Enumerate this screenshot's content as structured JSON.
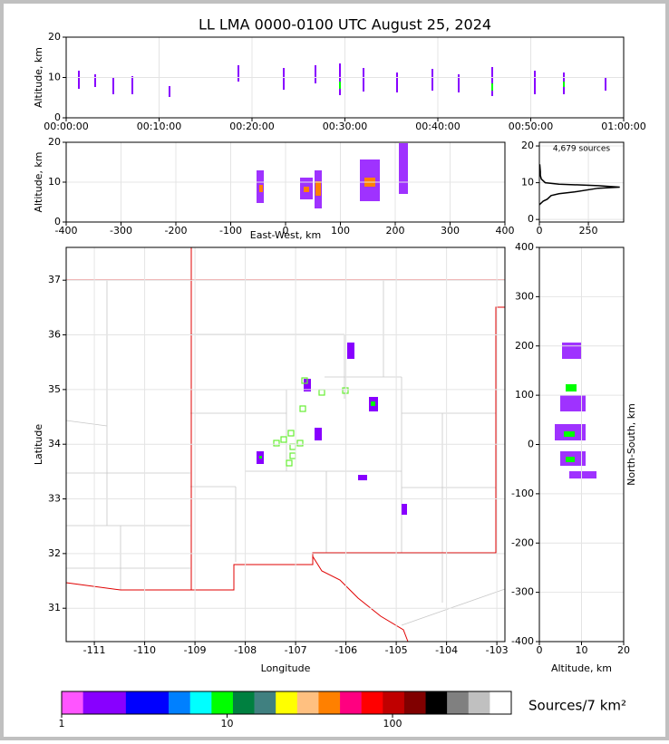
{
  "chart_data": [
    {
      "type": "scatter",
      "title": "LL LMA 0000-0100 UTC August 25, 2024",
      "ylabel": "Altitude, km",
      "xlim": [
        0,
        60
      ],
      "ylim": [
        0,
        20
      ],
      "grid": true,
      "xticks": [
        {
          "value": 0,
          "label": "00:00:00"
        },
        {
          "value": 10,
          "label": "00:10:00"
        },
        {
          "value": 20,
          "label": "00:20:00"
        },
        {
          "value": 30,
          "label": "00:30:00"
        },
        {
          "value": 40,
          "label": "00:40:00"
        },
        {
          "value": 50,
          "label": "00:50:00"
        },
        {
          "value": 60,
          "label": "01:00:00"
        }
      ],
      "yticks": [
        0,
        10,
        20
      ]
    },
    {
      "type": "scatter",
      "xlabel": "East-West, km",
      "ylabel": "Altitude, km",
      "xlim": [
        -400,
        400
      ],
      "ylim": [
        0,
        20
      ],
      "grid": true,
      "xticks": [
        -400,
        -300,
        -200,
        -100,
        0,
        100,
        200,
        300,
        400
      ],
      "yticks": [
        0,
        10,
        20
      ]
    },
    {
      "type": "line",
      "annotation": "4,679 sources",
      "xlim": [
        0,
        430
      ],
      "ylim": [
        -0.7,
        21
      ],
      "grid": true,
      "xticks": [
        0,
        250
      ],
      "yticks": [
        0,
        10,
        20
      ],
      "color": "#000000",
      "x": [
        0,
        20,
        40,
        60,
        100,
        180,
        300,
        410,
        300,
        100,
        30,
        10,
        5,
        5,
        2
      ],
      "values": [
        4,
        5,
        5.5,
        6.5,
        7,
        7.5,
        8.5,
        8.8,
        9.2,
        9.6,
        10,
        11,
        12,
        13,
        15
      ]
    },
    {
      "type": "map",
      "xlabel": "Longitude",
      "ylabel": "Latitude",
      "xlim": [
        -111.56,
        -102.84
      ],
      "ylim": [
        30.39,
        37.6
      ],
      "grid": true,
      "xticks": [
        -111,
        -110,
        -109,
        -108,
        -107,
        -106,
        -105,
        -104,
        -103
      ],
      "yticks": [
        31,
        32,
        33,
        34,
        35,
        36,
        37
      ]
    },
    {
      "type": "scatter",
      "xlabel": "Altitude, km",
      "ylabel": "North-South, km",
      "xlim": [
        0,
        20
      ],
      "ylim": [
        -400,
        400
      ],
      "grid": true,
      "xticks": [
        0,
        10,
        20
      ],
      "yticks": [
        -400,
        -300,
        -200,
        -100,
        0,
        100,
        200,
        300,
        400
      ]
    },
    {
      "type": "colorbar",
      "label": "Sources/7 km²",
      "clim": [
        1,
        522
      ],
      "xticks": [
        1,
        10,
        100
      ],
      "colors": [
        "#ff55ff",
        "#8800ff",
        "#8800ff",
        "#0000ff",
        "#0000ff",
        "#0080ff",
        "#00ffff",
        "#00ff00",
        "#008040",
        "#408080",
        "#ffff00",
        "#ffc080",
        "#ff8000",
        "#ff0080",
        "#ff0000",
        "#c00000",
        "#800000",
        "#000000",
        "#808080",
        "#c0c0c0",
        "#ffffff"
      ]
    }
  ]
}
